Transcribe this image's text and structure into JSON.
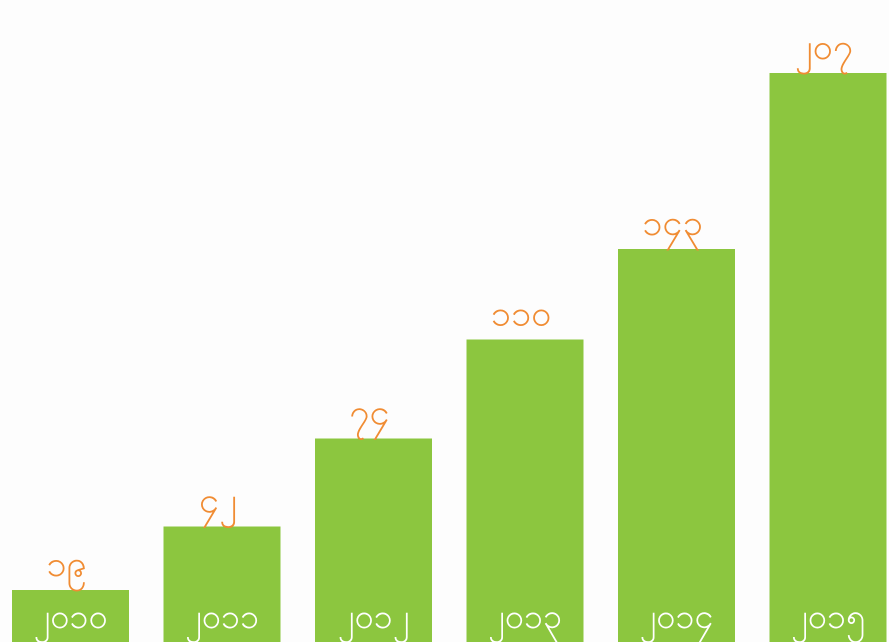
{
  "chart_data": {
    "type": "bar",
    "categories": [
      "၂၀၁၀",
      "၂၀၁၁",
      "၂၀၁၂",
      "၂၀၁၃",
      "၂၀၁၄",
      "၂၀၁၅"
    ],
    "value_labels": [
      "၁၉",
      "၄၂",
      "၇၄",
      "၁၁၀",
      "၁၄၃",
      "၂၀၇"
    ],
    "values": [
      19,
      42,
      74,
      110,
      143,
      207
    ],
    "title": "",
    "xlabel": "",
    "ylabel": "",
    "ylim": [
      0,
      220
    ],
    "grid": false,
    "legend": "none"
  },
  "colors": {
    "bar": "#8cc63f",
    "value_label": "#f08c33",
    "category_label": "#ffffff",
    "background": "#fdfdfd"
  }
}
